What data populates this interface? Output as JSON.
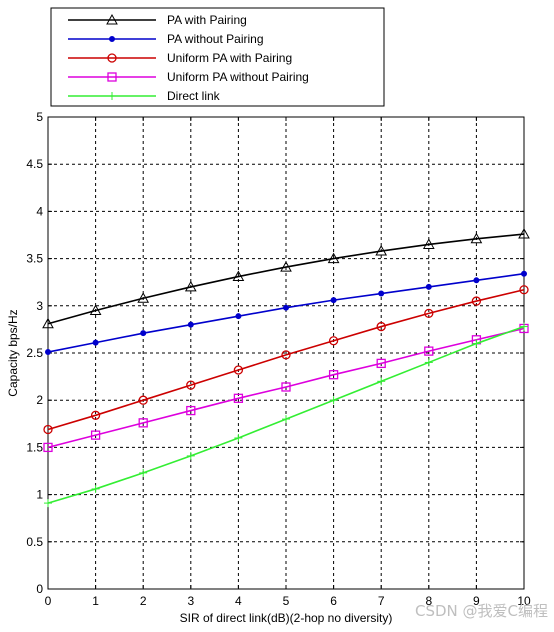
{
  "chart_data": {
    "type": "line",
    "title": "",
    "xlabel": "SIR of direct link(dB)(2-hop no diversity)",
    "ylabel": "Capacity bps/Hz",
    "xlim": [
      0,
      10
    ],
    "ylim": [
      0,
      5
    ],
    "xticks": [
      0,
      1,
      2,
      3,
      4,
      5,
      6,
      7,
      8,
      9,
      10
    ],
    "yticks": [
      0,
      0.5,
      1,
      1.5,
      2,
      2.5,
      3,
      3.5,
      4,
      4.5,
      5
    ],
    "xtick_labels": [
      "0",
      "1",
      "2",
      "3",
      "4",
      "5",
      "6",
      "7",
      "8",
      "9",
      "10"
    ],
    "ytick_labels": [
      "0",
      "0.5",
      "1",
      "1.5",
      "2",
      "2.5",
      "3",
      "3.5",
      "4",
      "4.5",
      "5"
    ],
    "grid": true,
    "legend_position": "top",
    "x": [
      0,
      1,
      2,
      3,
      4,
      5,
      6,
      7,
      8,
      9,
      10
    ],
    "series": [
      {
        "name": "PA with Pairing",
        "color": "#000000",
        "marker": "triangle",
        "values": [
          2.81,
          2.95,
          3.08,
          3.2,
          3.31,
          3.41,
          3.5,
          3.58,
          3.65,
          3.71,
          3.76
        ]
      },
      {
        "name": "PA without Pairing",
        "color": "#0000cc",
        "marker": "dot",
        "values": [
          2.51,
          2.61,
          2.71,
          2.8,
          2.89,
          2.98,
          3.06,
          3.13,
          3.2,
          3.27,
          3.34
        ]
      },
      {
        "name": "Uniform PA with Pairing",
        "color": "#cc0000",
        "marker": "circle",
        "values": [
          1.69,
          1.84,
          2.0,
          2.16,
          2.32,
          2.48,
          2.63,
          2.78,
          2.92,
          3.05,
          3.17
        ]
      },
      {
        "name": "Uniform PA without Pairing",
        "color": "#dd00dd",
        "marker": "square",
        "values": [
          1.5,
          1.63,
          1.76,
          1.89,
          2.02,
          2.14,
          2.27,
          2.39,
          2.52,
          2.64,
          2.76
        ]
      },
      {
        "name": "Direct link",
        "color": "#33ee33",
        "marker": "plus",
        "values": [
          0.91,
          1.06,
          1.23,
          1.41,
          1.6,
          1.8,
          2.0,
          2.2,
          2.4,
          2.6,
          2.78
        ]
      }
    ]
  },
  "watermark": "CSDN @我爱C编程"
}
